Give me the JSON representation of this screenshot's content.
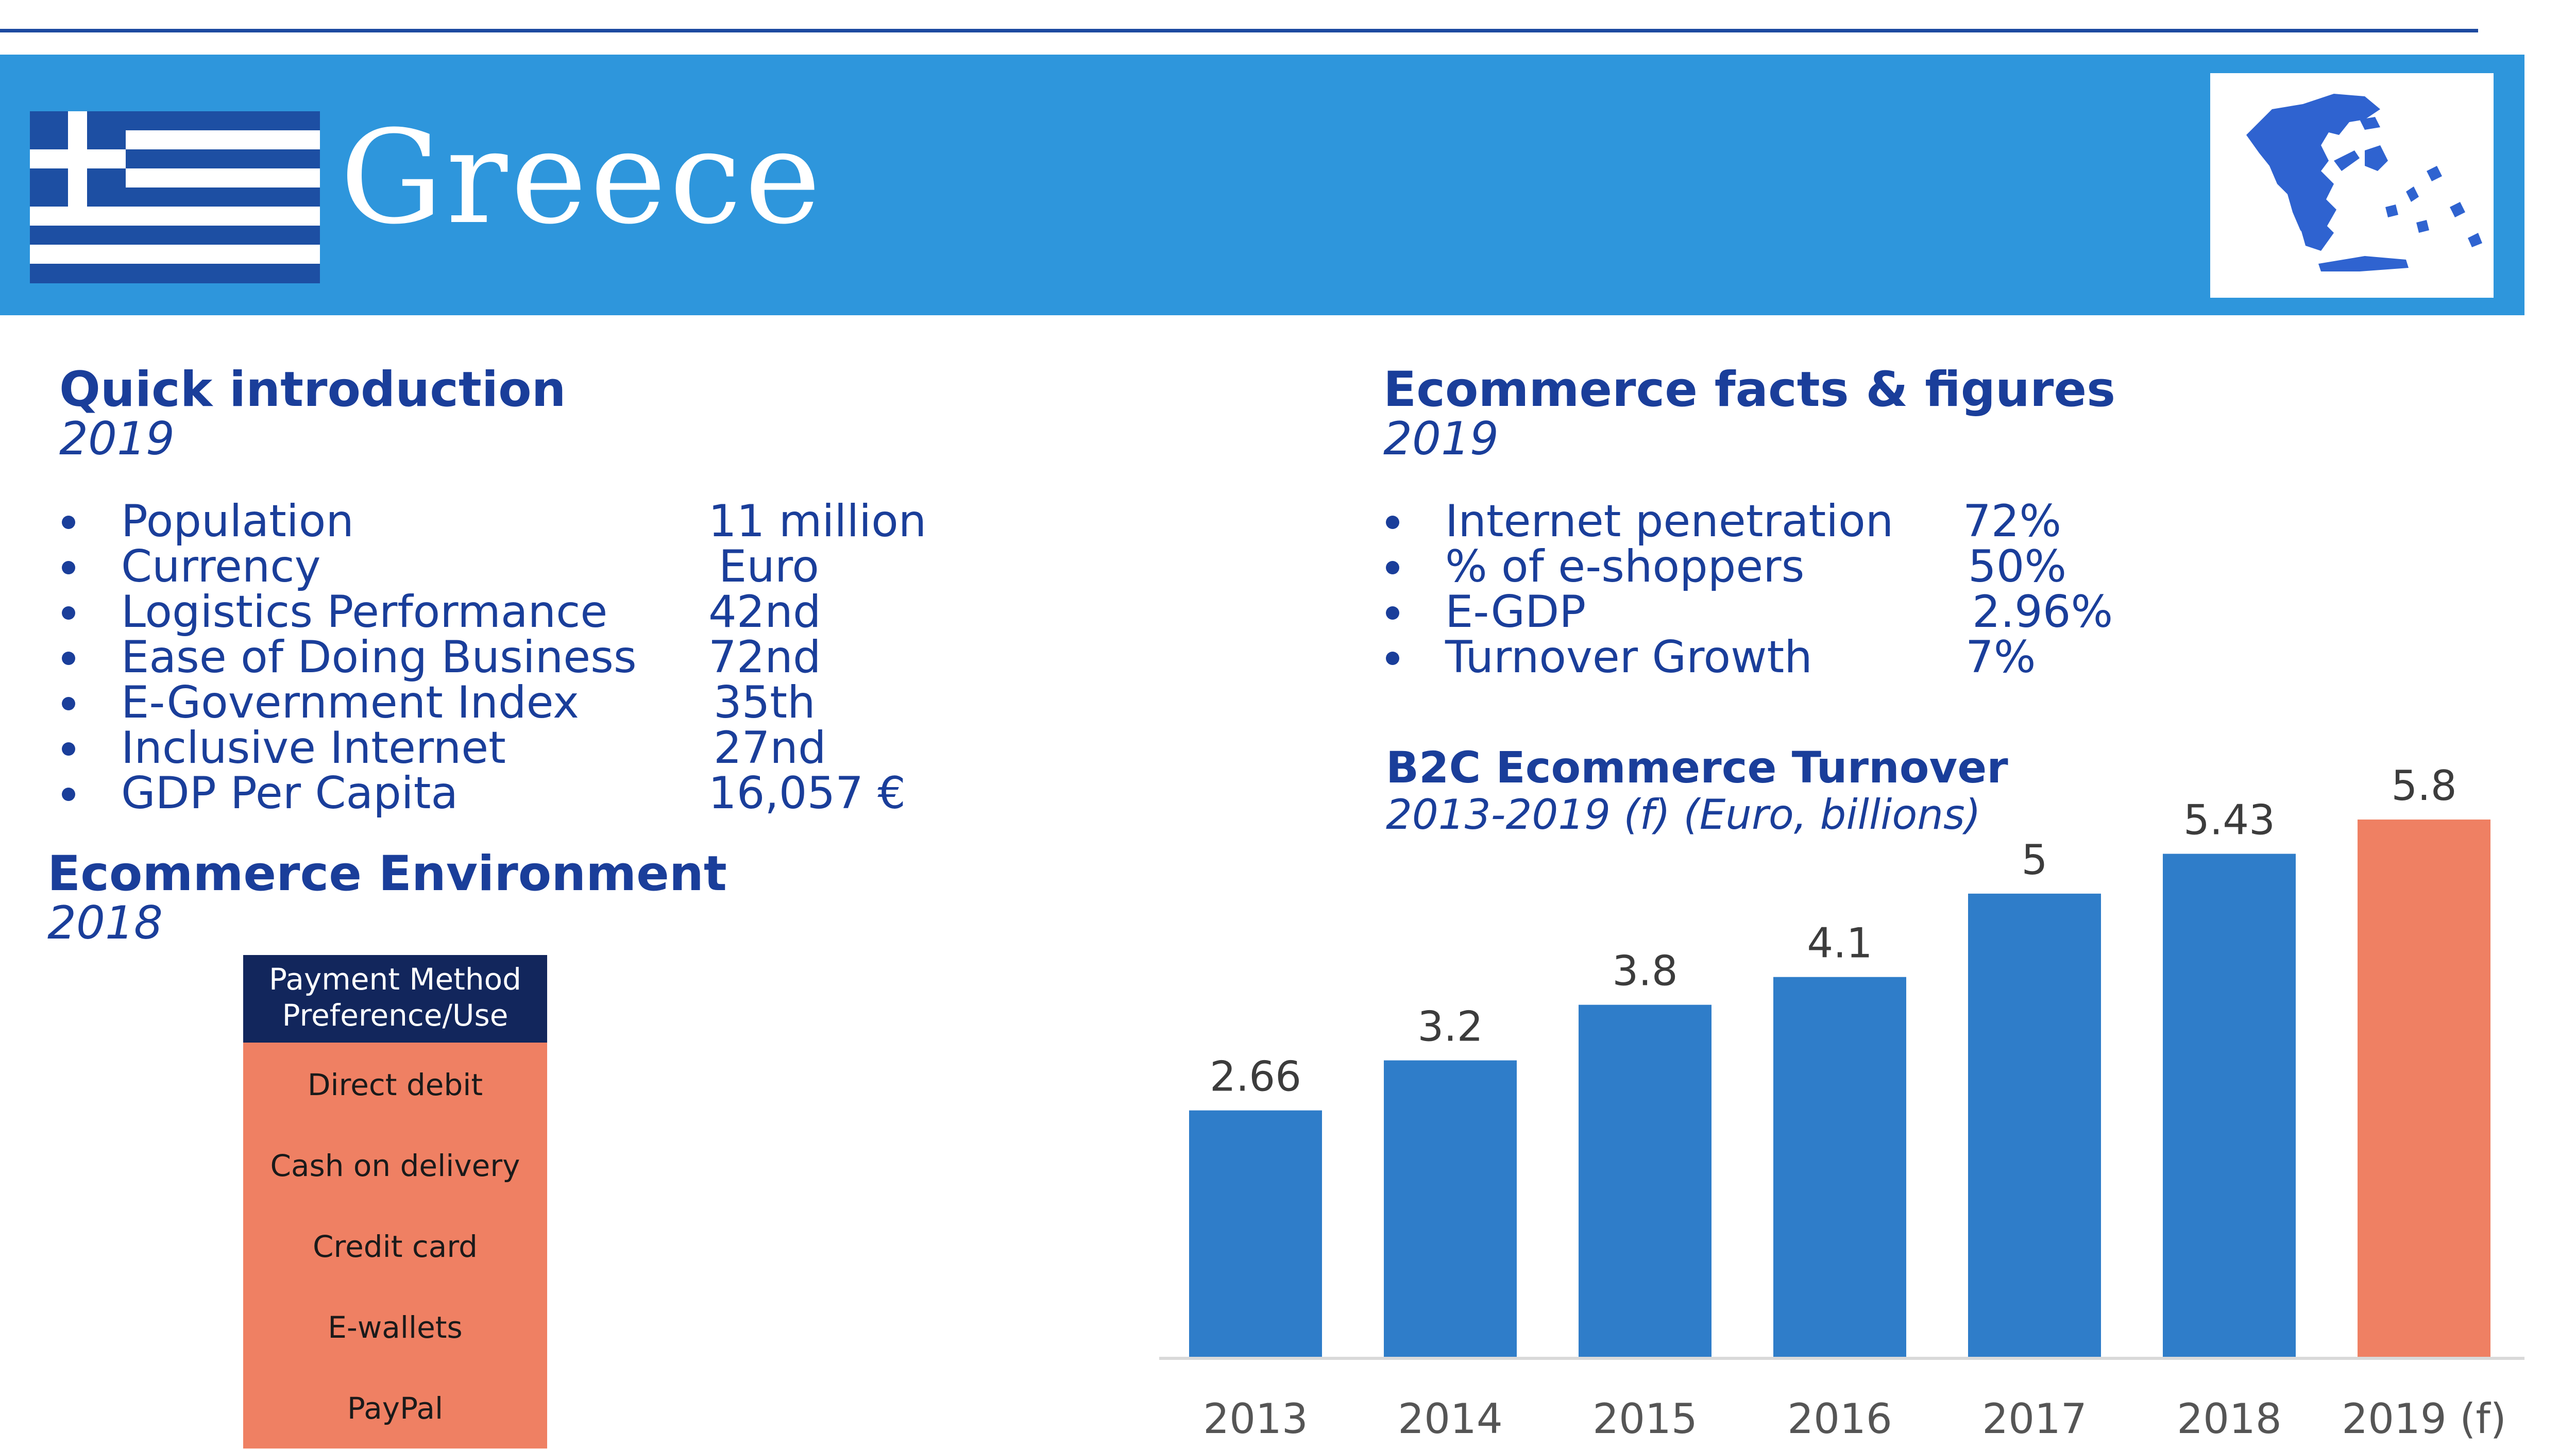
{
  "header": {
    "country": "Greece",
    "flag_colors": {
      "blue": "#1d4fa3",
      "white": "#ffffff"
    },
    "banner_color": "#2e96dc",
    "map_icon": "greece-map-icon"
  },
  "quick_intro": {
    "title": "Quick introduction",
    "year": "2019",
    "items": [
      {
        "label": "Population",
        "value": "11 million"
      },
      {
        "label": "Currency",
        "value": "Euro"
      },
      {
        "label": "Logistics Performance",
        "value": "42nd"
      },
      {
        "label": "Ease of Doing Business",
        "value": "72nd"
      },
      {
        "label": "E-Government Index",
        "value": "35th"
      },
      {
        "label": "Inclusive Internet",
        "value": "27nd"
      },
      {
        "label": "GDP Per Capita",
        "value": "16,057 €"
      }
    ]
  },
  "ecommerce_env": {
    "title": "Ecommerce Environment",
    "year": "2018",
    "payment_table": {
      "header": "Payment Method Preference/Use",
      "items": [
        "Direct debit",
        "Cash on delivery",
        "Credit card",
        "E-wallets",
        "PayPal"
      ]
    }
  },
  "ecommerce_facts": {
    "title": "Ecommerce facts & figures",
    "year": "2019",
    "items": [
      {
        "label": "Internet penetration",
        "value": "72%"
      },
      {
        "label": "% of e-shoppers",
        "value": "50%"
      },
      {
        "label": "E-GDP",
        "value": "2.96%"
      },
      {
        "label": "Turnover Growth",
        "value": "7%"
      }
    ]
  },
  "chart_data": {
    "type": "bar",
    "title": "B2C Ecommerce Turnover",
    "subtitle": "2013-2019 (f) (Euro, billions)",
    "categories": [
      "2013",
      "2014",
      "2015",
      "2016",
      "2017",
      "2018",
      "2019 (f)"
    ],
    "values": [
      2.66,
      3.2,
      3.8,
      4.1,
      5,
      5.43,
      5.8
    ],
    "value_labels": [
      "2.66",
      "3.2",
      "3.8",
      "4.1",
      "5",
      "5.43",
      "5.8"
    ],
    "ylim": [
      0,
      6
    ],
    "grid": false,
    "colors": {
      "actual": "#2f7dc9",
      "forecast": "#ef8063"
    }
  }
}
